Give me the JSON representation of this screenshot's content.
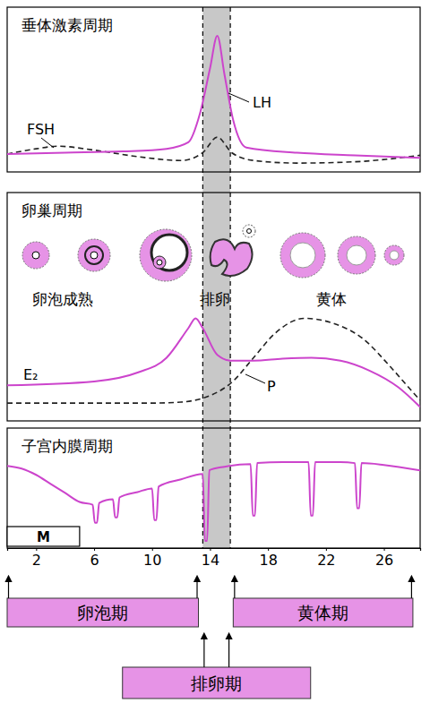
{
  "chart_data": [
    {
      "type": "line",
      "title": "垂体激素周期",
      "xlim": [
        0,
        28.5
      ],
      "ylim": [
        0,
        100
      ],
      "tick_labels": false,
      "series": [
        {
          "name": "FSH",
          "color": "#222222",
          "line_style": "dashed",
          "x": [
            0,
            2,
            3.5,
            6,
            9,
            12,
            13.5,
            14.5,
            15.5,
            17,
            20,
            24,
            28.5
          ],
          "values": [
            9,
            13,
            15,
            12,
            7,
            4,
            10,
            22,
            10,
            4,
            2,
            3,
            8
          ]
        },
        {
          "name": "LH",
          "color": "#cc44cc",
          "line_style": "solid",
          "x": [
            0,
            4,
            8,
            11,
            12.5,
            13.3,
            14,
            14.5,
            15,
            15.6,
            16.5,
            20,
            24,
            28.5
          ],
          "values": [
            9,
            10,
            11,
            13,
            18,
            40,
            75,
            100,
            70,
            35,
            14,
            10,
            8,
            6
          ]
        }
      ]
    },
    {
      "type": "line",
      "title": "卵巢周期",
      "xlim": [
        0,
        28.5
      ],
      "ylim": [
        0,
        100
      ],
      "tick_labels": false,
      "annotations": [
        "卵泡成熟",
        "排卵",
        "黄体"
      ],
      "series": [
        {
          "name": "E₂",
          "color": "#cc44cc",
          "line_style": "solid",
          "x": [
            0,
            6,
            9,
            11,
            12.5,
            13,
            13.5,
            14.5,
            15.5,
            17,
            19,
            21,
            23,
            25,
            27,
            28.5
          ],
          "values": [
            27,
            31,
            40,
            55,
            85,
            95,
            85,
            58,
            52,
            52,
            54,
            55,
            52,
            42,
            25,
            5
          ]
        },
        {
          "name": "P",
          "color": "#222222",
          "line_style": "dashed",
          "x": [
            0,
            10,
            12,
            13.5,
            14.5,
            15.5,
            17,
            18.5,
            20.5,
            22.5,
            24.5,
            26.5,
            28,
            28.5
          ],
          "values": [
            9,
            9,
            10,
            14,
            20,
            30,
            55,
            80,
            95,
            90,
            75,
            45,
            20,
            12
          ]
        }
      ]
    },
    {
      "type": "line",
      "title": "子宫内膜周期",
      "xlim": [
        0,
        28.5
      ],
      "ylim": [
        0,
        100
      ],
      "xticks": [
        2,
        6,
        10,
        14,
        18,
        22,
        26
      ],
      "tick_labels": "x",
      "annotations": [
        {
          "text": "M",
          "start": 0,
          "end": 5
        }
      ],
      "phases": [
        {
          "label": "卵泡期",
          "start": 0,
          "end": 13.2
        },
        {
          "label": "排卵期",
          "start": 13.5,
          "end": 15.4
        },
        {
          "label": "黄体期",
          "start": 15.6,
          "end": 28
        }
      ],
      "series": [
        {
          "color": "#cc44cc",
          "line_style": "solid",
          "x": [
            0,
            1,
            2,
            3,
            4,
            5,
            5.9,
            6.05,
            6.2,
            6.35,
            7.3,
            7.45,
            7.6,
            7.75,
            9,
            10,
            10.15,
            10.3,
            10.45,
            12,
            13.5,
            13.65,
            13.8,
            13.95,
            15,
            16.8,
            16.95,
            17.1,
            17.25,
            19,
            20.8,
            20.95,
            21.1,
            21.25,
            23,
            24,
            24.15,
            24.3,
            24.45,
            26,
            28.5
          ],
          "values": [
            85,
            82,
            75,
            65,
            55,
            45,
            42,
            22,
            22,
            44,
            48,
            28,
            28,
            50,
            56,
            60,
            25,
            25,
            62,
            70,
            76,
            2,
            2,
            80,
            84,
            87,
            30,
            30,
            88,
            89,
            89,
            30,
            30,
            89,
            89,
            88,
            38,
            38,
            88,
            86,
            80
          ]
        }
      ]
    }
  ]
}
